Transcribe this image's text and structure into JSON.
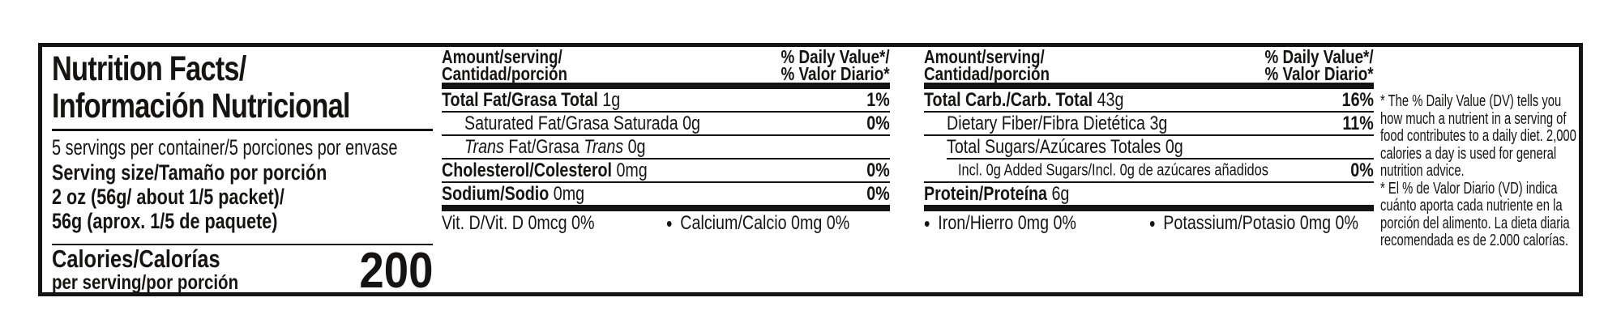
{
  "panel": {
    "title_line1": "Nutrition Facts/",
    "title_line2": "Información Nutricional",
    "servings_per_container": "5 servings per container/5 porciones por envase",
    "serving_size_label": "Serving size/Tamaño por porción",
    "serving_size_value_line1": "2 oz (56g/ about 1/5 packet)/",
    "serving_size_value_line2": "56g (aprox. 1/5 de paquete)",
    "calories_label": "Calories/Calorías",
    "calories_sublabel": "per serving/por porción",
    "calories_value": "200"
  },
  "columns_header": {
    "amount_line1": "Amount/serving/",
    "amount_line2": "Cantidad/porción",
    "dv_line1": "% Daily Value*/",
    "dv_line2": "% Valor Diario*"
  },
  "nutrient_column_1": {
    "rows": [
      {
        "name_bold": "Total Fat/Grasa Total",
        "amount": " 1g",
        "daily_value": "1%"
      },
      {
        "name": "Saturated Fat/Grasa Saturada 0g",
        "daily_value": "0%"
      },
      {
        "name_italic_1": "Trans",
        "name_mid": " Fat/Grasa ",
        "name_italic_2": "Trans",
        "name_tail": " 0g",
        "daily_value": ""
      },
      {
        "name_bold": "Cholesterol/Colesterol",
        "amount": " 0mg",
        "daily_value": "0%"
      },
      {
        "name_bold": "Sodium/Sodio",
        "amount": " 0mg",
        "daily_value": "0%"
      }
    ],
    "micronutrients": [
      {
        "bullet": "",
        "text": "Vit. D/Vit. D 0mcg 0%"
      },
      {
        "bullet": "•",
        "text": "Calcium/Calcio 0mg 0%"
      }
    ]
  },
  "nutrient_column_2": {
    "rows": [
      {
        "name_bold": "Total Carb./Carb. Total",
        "amount": " 43g",
        "daily_value": "16%"
      },
      {
        "name": "Dietary Fiber/Fibra Dietética 3g",
        "daily_value": "11%"
      },
      {
        "name": "Total Sugars/Azúcares Totales 0g",
        "daily_value": ""
      },
      {
        "name_small": "Incl. 0g Added Sugars/Incl. 0g de azúcares añadidos",
        "daily_value": "0%"
      },
      {
        "name_bold": "Protein/Proteína",
        "amount": " 6g",
        "daily_value": ""
      }
    ],
    "micronutrients": [
      {
        "bullet": "•",
        "text": "Iron/Hierro 0mg 0%"
      },
      {
        "bullet": "•",
        "text": "Potassium/Potasio 0mg 0%"
      }
    ]
  },
  "footnotes": {
    "english": "* The % Daily Value (DV) tells you how much a nutrient in a serving of food contributes to a daily diet. 2,000 calories a day is used for general nutrition advice.",
    "spanish": "* El % de Valor Diario (VD) indica cuánto aporta cada nutriente en la porción del alimento. La dieta diaria recomendada es de 2.000 calorías."
  }
}
